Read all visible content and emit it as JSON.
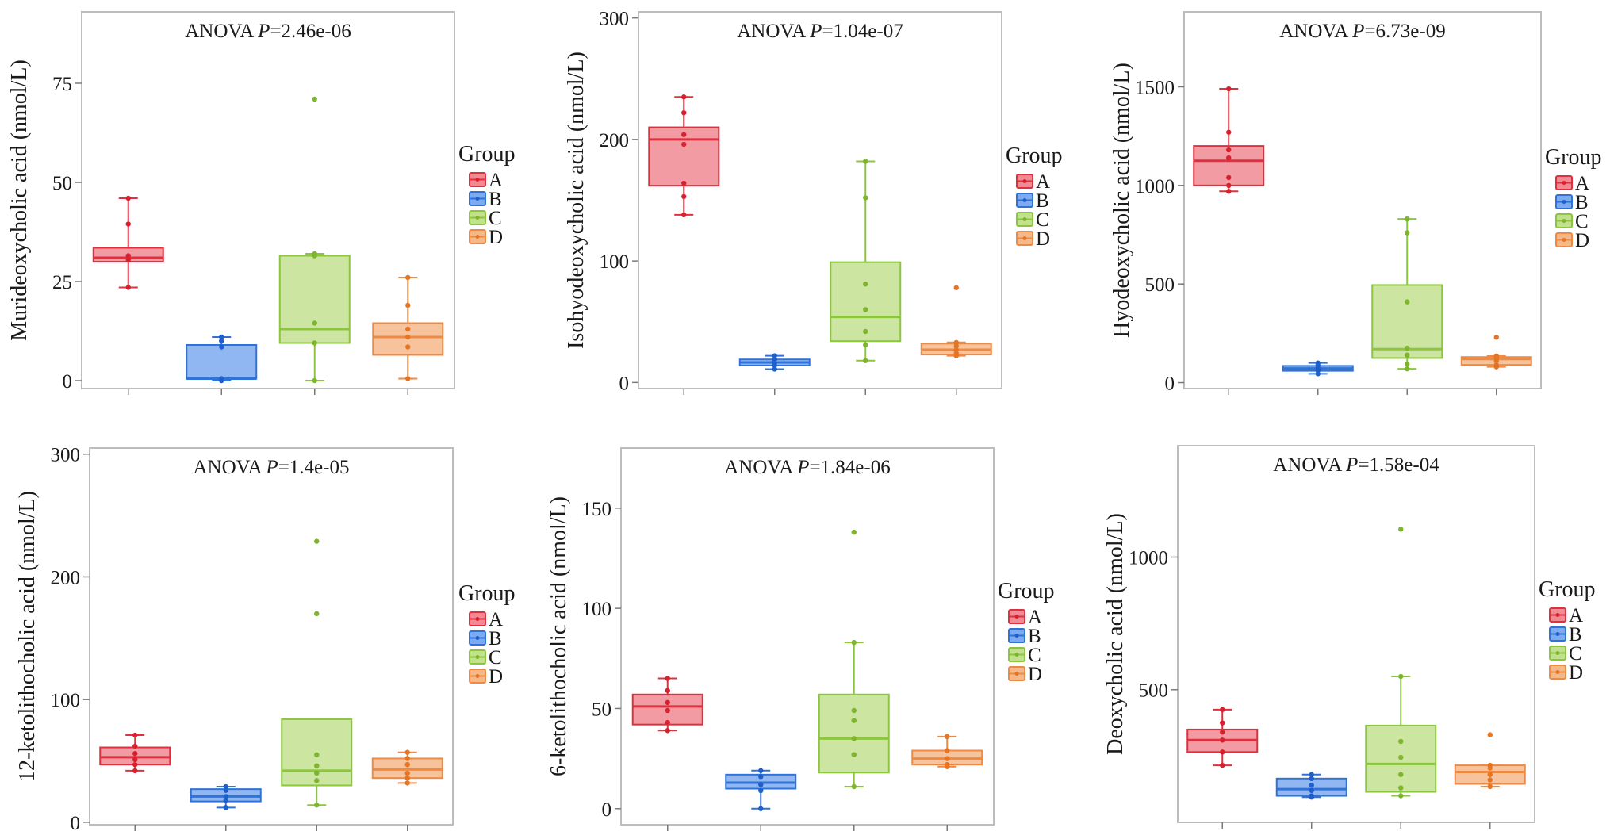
{
  "colors": {
    "A": {
      "stroke": "#e0303f",
      "fill": "#f08a93",
      "point": "#d9202e"
    },
    "B": {
      "stroke": "#2f73d8",
      "fill": "#7eaaf0",
      "point": "#1f5fcc"
    },
    "C": {
      "stroke": "#8cc63e",
      "fill": "#c3e08f",
      "point": "#7db52c"
    },
    "D": {
      "stroke": "#ee8a43",
      "fill": "#f4b98b",
      "point": "#e57423"
    }
  },
  "legend": {
    "title": "Group",
    "entries": [
      "A",
      "B",
      "C",
      "D"
    ]
  },
  "chart_data": [
    {
      "type": "box",
      "title_prefix": "ANOVA ",
      "title_stat": "P",
      "title_value": "=2.46e-06",
      "ylabel": "Murideoxycholic acid (nmol/L)",
      "ylim": [
        -2,
        93
      ],
      "yticks": [
        0,
        25,
        50,
        75
      ],
      "groups": [
        "A",
        "B",
        "C",
        "D"
      ],
      "boxes": [
        {
          "min": 23.5,
          "q1": 30,
          "median": 31,
          "q3": 33.5,
          "max": 46,
          "points": [
            46,
            39.5,
            31.5,
            30.5,
            23.5
          ]
        },
        {
          "min": 0,
          "q1": 0.5,
          "median": 0.5,
          "q3": 9,
          "max": 11,
          "points": [
            11,
            10,
            8.5,
            0.5,
            0
          ]
        },
        {
          "min": 0,
          "q1": 9.5,
          "median": 13,
          "q3": 31.5,
          "max": 32,
          "points": [
            71,
            32,
            31.5,
            14.5,
            9.5,
            0
          ]
        },
        {
          "min": 0.5,
          "q1": 6.5,
          "median": 11,
          "q3": 14.5,
          "max": 26,
          "points": [
            26,
            19,
            13,
            11,
            8.5,
            0.5
          ]
        }
      ]
    },
    {
      "type": "box",
      "title_prefix": "ANOVA ",
      "title_stat": "P",
      "title_value": "=1.04e-07",
      "ylabel": "Isohyodeoxycholic acid (nmol/L)",
      "ylim": [
        -5,
        305
      ],
      "yticks": [
        0,
        100,
        200,
        300
      ],
      "groups": [
        "A",
        "B",
        "C",
        "D"
      ],
      "boxes": [
        {
          "min": 138,
          "q1": 162,
          "median": 200,
          "q3": 210,
          "max": 235,
          "points": [
            235,
            222,
            204,
            196,
            164,
            153,
            138
          ]
        },
        {
          "min": 11,
          "q1": 14,
          "median": 16.5,
          "q3": 19,
          "max": 22,
          "points": [
            22,
            19,
            16,
            14,
            11
          ]
        },
        {
          "min": 18,
          "q1": 34,
          "median": 54,
          "q3": 99,
          "max": 182,
          "points": [
            182,
            152,
            81,
            60,
            42,
            31,
            18
          ]
        },
        {
          "min": 22,
          "q1": 23,
          "median": 27,
          "q3": 32,
          "max": 33,
          "points": [
            78,
            33,
            30,
            27,
            24,
            22
          ]
        }
      ]
    },
    {
      "type": "box",
      "title_prefix": "ANOVA ",
      "title_stat": "P",
      "title_value": "=6.73e-09",
      "ylabel": "Hyodeoxycholic acid (nmol/L)",
      "ylim": [
        -30,
        1880
      ],
      "yticks": [
        0,
        500,
        1000,
        1500
      ],
      "groups": [
        "A",
        "B",
        "C",
        "D"
      ],
      "boxes": [
        {
          "min": 970,
          "q1": 1000,
          "median": 1125,
          "q3": 1200,
          "max": 1490,
          "points": [
            1490,
            1270,
            1180,
            1140,
            1040,
            1000,
            970
          ]
        },
        {
          "min": 45,
          "q1": 60,
          "median": 72,
          "q3": 85,
          "max": 100,
          "points": [
            100,
            88,
            75,
            62,
            45
          ]
        },
        {
          "min": 70,
          "q1": 125,
          "median": 170,
          "q3": 495,
          "max": 830,
          "points": [
            830,
            760,
            410,
            175,
            140,
            95,
            70
          ]
        },
        {
          "min": 80,
          "q1": 90,
          "median": 120,
          "q3": 130,
          "max": 135,
          "points": [
            230,
            135,
            125,
            110,
            90,
            80
          ]
        }
      ]
    },
    {
      "type": "box",
      "title_prefix": "ANOVA ",
      "title_stat": "P",
      "title_value": "=1.4e-05",
      "ylabel": "12-ketolithocholic acid (nmol/L)",
      "ylim": [
        -2,
        305
      ],
      "yticks": [
        0,
        100,
        200,
        300
      ],
      "groups": [
        "A",
        "B",
        "C",
        "D"
      ],
      "boxes": [
        {
          "min": 42,
          "q1": 47,
          "median": 53,
          "q3": 61,
          "max": 71,
          "points": [
            71,
            62,
            56,
            51,
            47,
            42
          ]
        },
        {
          "min": 12,
          "q1": 17,
          "median": 21,
          "q3": 27,
          "max": 29,
          "points": [
            29,
            26,
            21,
            18,
            12
          ]
        },
        {
          "min": 14,
          "q1": 30,
          "median": 42,
          "q3": 84,
          "max": 84,
          "points": [
            229,
            170,
            55,
            46,
            40,
            34,
            14
          ]
        },
        {
          "min": 32,
          "q1": 36,
          "median": 43,
          "q3": 52,
          "max": 57,
          "points": [
            57,
            52,
            47,
            40,
            36,
            32
          ]
        }
      ]
    },
    {
      "type": "box",
      "title_prefix": "ANOVA ",
      "title_stat": "P",
      "title_value": "=1.84e-06",
      "ylabel": "6-ketolithocholic acid (nmol/L)",
      "ylim": [
        -8,
        180
      ],
      "yticks": [
        0,
        50,
        100,
        150
      ],
      "groups": [
        "A",
        "B",
        "C",
        "D"
      ],
      "boxes": [
        {
          "min": 39,
          "q1": 42,
          "median": 51,
          "q3": 57,
          "max": 65,
          "points": [
            65,
            59,
            53,
            49,
            43,
            39
          ]
        },
        {
          "min": 0,
          "q1": 10,
          "median": 13,
          "q3": 17,
          "max": 19,
          "points": [
            19,
            16,
            12,
            9,
            0
          ]
        },
        {
          "min": 11,
          "q1": 18,
          "median": 35,
          "q3": 57,
          "max": 83,
          "points": [
            138,
            83,
            49,
            44,
            35,
            27,
            11
          ]
        },
        {
          "min": 21,
          "q1": 22,
          "median": 25,
          "q3": 29,
          "max": 36,
          "points": [
            36,
            29,
            25,
            22,
            21
          ]
        }
      ]
    },
    {
      "type": "box",
      "title_prefix": "ANOVA ",
      "title_stat": "P",
      "title_value": "=1.58e-04",
      "ylabel": "Deoxycholic acid (nmol/L)",
      "ylim": [
        0,
        1420
      ],
      "yticks": [
        500,
        1000
      ],
      "groups": [
        "A",
        "B",
        "C",
        "D"
      ],
      "boxes": [
        {
          "min": 215,
          "q1": 265,
          "median": 310,
          "q3": 350,
          "max": 425,
          "points": [
            425,
            375,
            340,
            310,
            265,
            215
          ]
        },
        {
          "min": 95,
          "q1": 100,
          "median": 125,
          "q3": 165,
          "max": 180,
          "points": [
            180,
            165,
            140,
            120,
            100,
            95
          ]
        },
        {
          "min": 100,
          "q1": 115,
          "median": 220,
          "q3": 365,
          "max": 550,
          "points": [
            1105,
            550,
            305,
            245,
            180,
            130,
            100
          ]
        },
        {
          "min": 135,
          "q1": 145,
          "median": 190,
          "q3": 215,
          "max": 215,
          "points": [
            330,
            215,
            205,
            180,
            160,
            135
          ]
        }
      ]
    }
  ]
}
